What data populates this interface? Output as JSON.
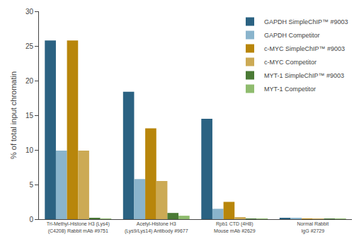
{
  "chart_data": {
    "type": "bar",
    "categories": [
      "Tri-Methyl-Histone H3 (Lys4)\n(C4208) Rabbit mAb #9751",
      "Acetyl-Histone H3\n(Lys9/Lys14) Antibody #9677",
      "Rpb1 CTD (4H8)\nMouse mAb #2629",
      "Normal Rabbit\nIgG #2729"
    ],
    "series": [
      {
        "name": "GAPDH SimpleChIP™ #9003",
        "color": "#2b6282",
        "values": [
          25.8,
          18.4,
          14.5,
          0.15
        ]
      },
      {
        "name": "GAPDH Competitor",
        "color": "#8ab4cc",
        "values": [
          9.9,
          5.8,
          1.5,
          0.15
        ]
      },
      {
        "name": "c-MYC SimpleChIP™ #9003",
        "color": "#b8860b",
        "values": [
          25.8,
          13.1,
          2.5,
          0.1
        ]
      },
      {
        "name": "c-MYC Competitor",
        "color": "#ccaa55",
        "values": [
          9.9,
          5.5,
          0.3,
          0.1
        ]
      },
      {
        "name": "MYT-1 SimpleChIP™ #9003",
        "color": "#4a7a35",
        "values": [
          0.15,
          0.9,
          0.1,
          0.05
        ]
      },
      {
        "name": "MYT-1 Competitor",
        "color": "#8fbc6e",
        "values": [
          0.1,
          0.5,
          0.05,
          0.05
        ]
      }
    ],
    "ylabel": "% of total input chromatin",
    "ylim": [
      0,
      30
    ],
    "yticks": [
      0,
      5,
      10,
      15,
      20,
      25,
      30
    ],
    "grid": false,
    "legend": "upper right"
  }
}
